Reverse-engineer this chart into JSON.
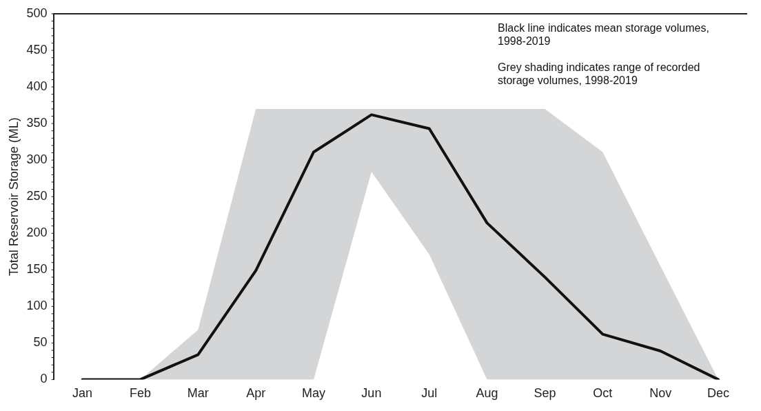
{
  "chart_data": {
    "type": "line",
    "ylabel": "Total Reservoir Storage (ML)",
    "categories": [
      "Jan",
      "Feb",
      "Mar",
      "Apr",
      "May",
      "Jun",
      "Jul",
      "Aug",
      "Sep",
      "Oct",
      "Nov",
      "Dec"
    ],
    "series": [
      {
        "color": "#111111",
        "values": [
          0,
          0,
          34,
          149,
          311,
          362,
          343,
          214,
          140,
          62,
          39,
          0
        ],
        "lower": [
          0,
          0,
          0,
          0,
          0,
          284,
          171,
          0,
          0,
          0,
          0,
          0
        ],
        "upper": [
          0,
          0,
          68,
          370,
          370,
          370,
          370,
          370,
          370,
          311,
          155,
          0
        ]
      }
    ],
    "ylim": [
      0,
      500
    ],
    "yticks": [
      0,
      50,
      100,
      150,
      200,
      250,
      300,
      350,
      400,
      450,
      500
    ],
    "grid": false,
    "legend": false,
    "marker": "none",
    "line_style": "solid",
    "annotations": [
      "Black line indicates mean storage volumes, 1998-2019",
      "Grey shading indicates range of recorded storage volumes, 1998-2019"
    ]
  }
}
